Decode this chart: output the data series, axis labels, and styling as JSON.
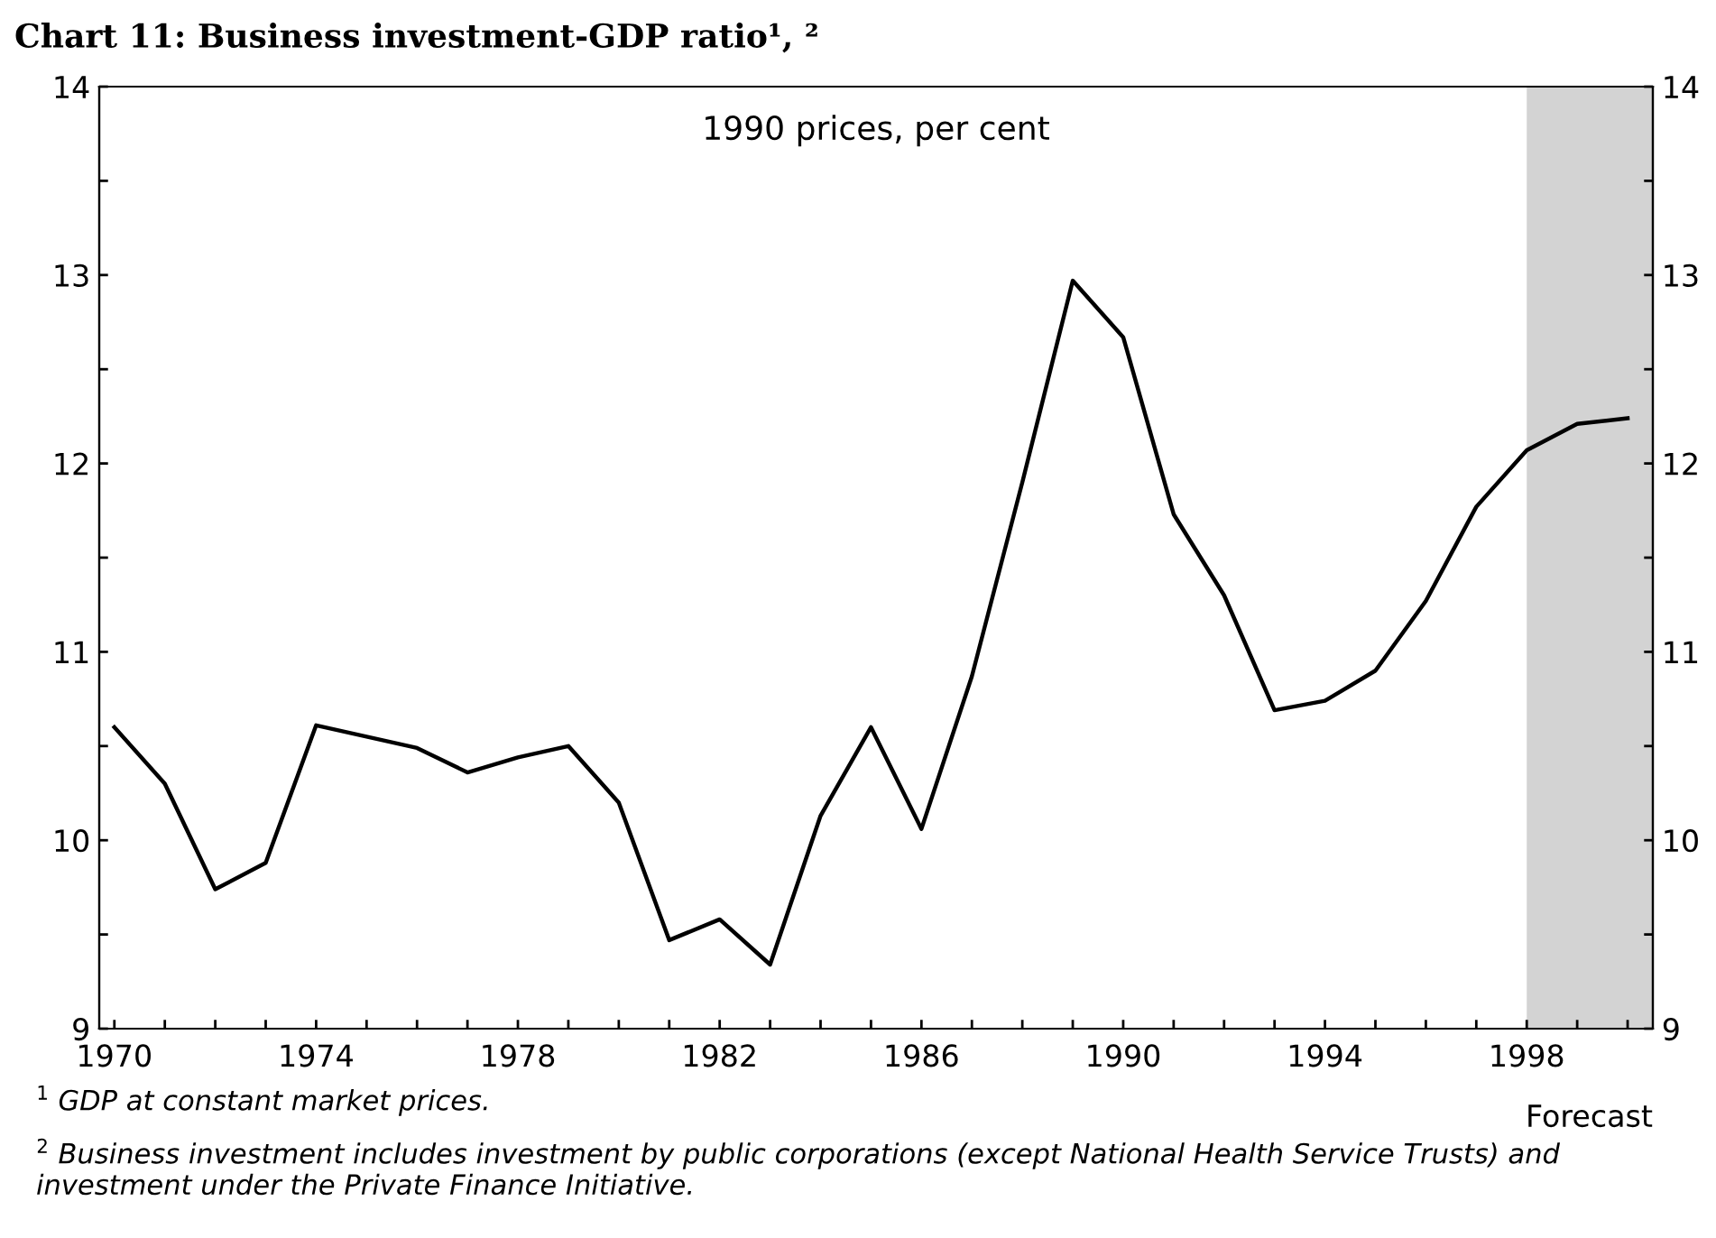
{
  "chart_data": {
    "type": "line",
    "title": "Chart 11: Business investment-GDP ratio¹, ²",
    "subtitle": "1990 prices, per cent",
    "x": [
      1970,
      1971,
      1972,
      1973,
      1974,
      1975,
      1976,
      1977,
      1978,
      1979,
      1980,
      1981,
      1982,
      1983,
      1984,
      1985,
      1986,
      1987,
      1988,
      1989,
      1990,
      1991,
      1992,
      1993,
      1994,
      1995,
      1996,
      1997,
      1998,
      1999,
      2000
    ],
    "series": [
      {
        "color": "#000000",
        "values": [
          10.6,
          10.3,
          9.74,
          9.88,
          10.61,
          10.55,
          10.49,
          10.36,
          10.44,
          10.5,
          10.2,
          9.47,
          9.58,
          9.34,
          10.13,
          10.6,
          10.06,
          10.87,
          11.9,
          12.97,
          12.67,
          11.73,
          11.3,
          10.69,
          10.74,
          10.9,
          11.27,
          11.77,
          12.07,
          12.21,
          12.24
        ]
      }
    ],
    "xlim": [
      1969.7,
      2000.5
    ],
    "xticks": [
      1970,
      {
        "value": 1971,
        "label": null
      },
      {
        "value": 1972,
        "label": null
      },
      {
        "value": 1973,
        "label": null
      },
      1974,
      {
        "value": 1975,
        "label": null
      },
      {
        "value": 1976,
        "label": null
      },
      {
        "value": 1977,
        "label": null
      },
      1978,
      {
        "value": 1979,
        "label": null
      },
      {
        "value": 1980,
        "label": null
      },
      {
        "value": 1981,
        "label": null
      },
      1982,
      {
        "value": 1983,
        "label": null
      },
      {
        "value": 1984,
        "label": null
      },
      {
        "value": 1985,
        "label": null
      },
      1986,
      {
        "value": 1987,
        "label": null
      },
      {
        "value": 1988,
        "label": null
      },
      {
        "value": 1989,
        "label": null
      },
      1990,
      {
        "value": 1991,
        "label": null
      },
      {
        "value": 1992,
        "label": null
      },
      {
        "value": 1993,
        "label": null
      },
      1994,
      {
        "value": 1995,
        "label": null
      },
      {
        "value": 1996,
        "label": null
      },
      {
        "value": 1997,
        "label": null
      },
      1998,
      {
        "value": 1999,
        "label": null
      },
      {
        "value": 2000,
        "label": null
      }
    ],
    "ylim": [
      9,
      14
    ],
    "yticks": [
      9,
      {
        "value": 9.5,
        "label": null
      },
      10,
      {
        "value": 10.5,
        "label": null
      },
      11,
      {
        "value": 11.5,
        "label": null
      },
      12,
      {
        "value": 12.5,
        "label": null
      },
      13,
      {
        "value": 13.5,
        "label": null
      },
      14
    ],
    "y2lim": [
      9,
      14
    ],
    "y2ticks": [
      9,
      {
        "value": 9.5,
        "label": null
      },
      10,
      {
        "value": 10.5,
        "label": null
      },
      11,
      {
        "value": 11.5,
        "label": null
      },
      12,
      {
        "value": 12.5,
        "label": null
      },
      13,
      {
        "value": 13.5,
        "label": null
      },
      14
    ],
    "bands": [
      {
        "axis": "x",
        "from": 1998,
        "to": 2000.5,
        "label": "Forecast",
        "color": "#d3d3d3"
      }
    ],
    "grid": false,
    "marker": "none",
    "line_style": "solid",
    "annotations": [
      "$^{1}$ GDP at constant market prices.",
      "$^{2}$ Business investment includes investment by public corporations (except National Health Service Trusts) and investment under the Private Finance Initiative."
    ]
  }
}
